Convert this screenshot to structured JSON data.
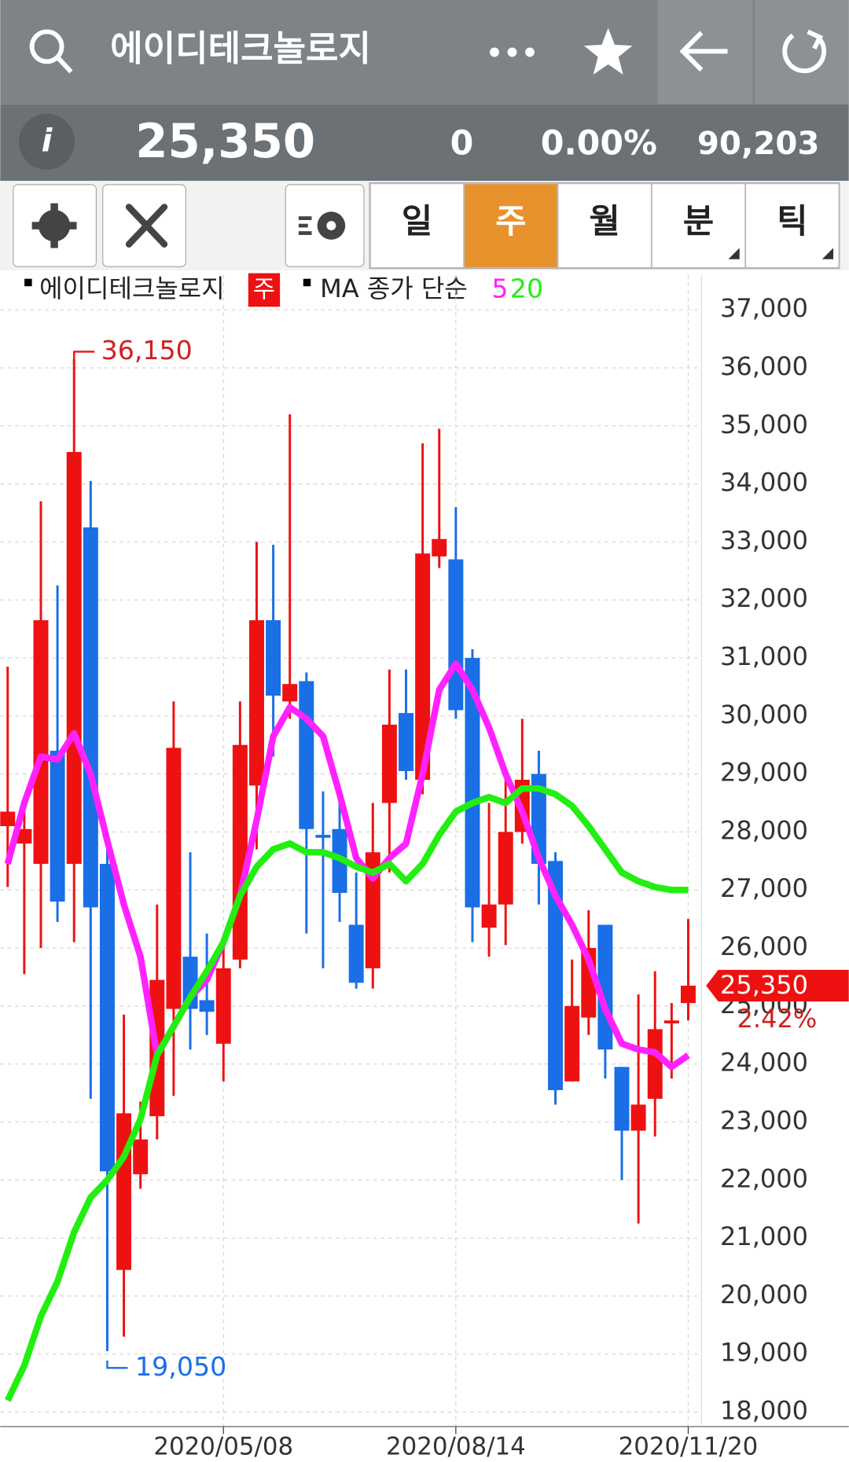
{
  "header": {
    "title": "에이디테크놀로지",
    "price": "25,350",
    "change": "0",
    "change_pct": "0.00%",
    "volume": "90,203"
  },
  "tabs": [
    "일",
    "주",
    "월",
    "분",
    "틱"
  ],
  "chart_data": {
    "type": "candlestick",
    "title": "에이디테크놀로지",
    "period": "주",
    "ma_label": "MA 종가 단순",
    "categories": [
      null,
      null,
      null,
      null,
      null,
      null,
      null,
      null,
      null,
      null,
      null,
      null,
      null,
      "2020/05/08",
      null,
      null,
      null,
      null,
      null,
      null,
      null,
      null,
      null,
      null,
      null,
      null,
      null,
      "2020/08/14",
      null,
      null,
      null,
      null,
      null,
      null,
      null,
      null,
      null,
      null,
      null,
      null,
      null,
      "2020/11/20"
    ],
    "open": [
      28100,
      27800,
      27450,
      29400,
      27450,
      33250,
      27450,
      20450,
      22100,
      23100,
      24950,
      25850,
      25100,
      24350,
      25800,
      28800,
      31650,
      30250,
      30600,
      27950,
      28050,
      26400,
      25650,
      28500,
      30050,
      28900,
      32750,
      32700,
      31000,
      26350,
      26750,
      28000,
      29000,
      27500,
      23700,
      24800,
      26400,
      23950,
      22850,
      23400,
      24700,
      25050
    ],
    "high": [
      30850,
      28500,
      33700,
      32250,
      36150,
      34050,
      27850,
      24850,
      23350,
      26750,
      30250,
      27650,
      26250,
      26100,
      30250,
      33000,
      32950,
      35200,
      30750,
      28700,
      28500,
      27300,
      28500,
      30800,
      30800,
      34700,
      34950,
      33600,
      31150,
      28500,
      29000,
      29950,
      29400,
      27650,
      25800,
      26650,
      26400,
      23950,
      25200,
      25600,
      25050,
      26500
    ],
    "low": [
      27050,
      25550,
      26000,
      26450,
      26100,
      23400,
      19050,
      19300,
      21850,
      22700,
      23450,
      24250,
      24500,
      23700,
      25650,
      27700,
      29300,
      29950,
      26250,
      25650,
      26450,
      25300,
      25300,
      27300,
      28900,
      28650,
      32550,
      29950,
      26100,
      25850,
      26050,
      27800,
      26750,
      23300,
      23700,
      24500,
      23750,
      22000,
      21250,
      22750,
      23750,
      24750
    ],
    "close": [
      28350,
      28050,
      31650,
      26800,
      34550,
      26700,
      22150,
      23150,
      22700,
      25450,
      29450,
      24950,
      24900,
      25650,
      29500,
      31650,
      30350,
      30550,
      28050,
      27900,
      26950,
      25400,
      27650,
      29850,
      29050,
      32800,
      33050,
      30100,
      26700,
      26750,
      28000,
      28900,
      27450,
      23550,
      25000,
      26000,
      24250,
      22850,
      23300,
      24600,
      24750,
      25350
    ],
    "up_color": "#ee1111",
    "down_color": "#1a6ee6",
    "series": [
      {
        "name": "5",
        "color": "#ff22ff",
        "values": [
          27450,
          28500,
          29300,
          29250,
          29700,
          29000,
          27850,
          26750,
          25850,
          24150,
          24650,
          25150,
          25450,
          26100,
          26900,
          28200,
          29650,
          30150,
          29950,
          29650,
          28650,
          27550,
          27200,
          27550,
          27800,
          29000,
          30450,
          30900,
          30450,
          29800,
          29000,
          28350,
          27550,
          26900,
          26400,
          25800,
          24950,
          24350,
          24250,
          24200,
          23950,
          24150
        ]
      },
      {
        "name": "20",
        "color": "#22ee11",
        "values": [
          18200,
          18800,
          19650,
          20250,
          21100,
          21700,
          22000,
          22400,
          23050,
          24150,
          24650,
          25150,
          25600,
          26100,
          26900,
          27400,
          27700,
          27800,
          27650,
          27650,
          27550,
          27400,
          27300,
          27450,
          27150,
          27450,
          27950,
          28350,
          28500,
          28600,
          28500,
          28750,
          28750,
          28650,
          28450,
          28100,
          27700,
          27300,
          27150,
          27050,
          27000,
          27000
        ]
      }
    ],
    "ylim": [
      17750,
      37600
    ],
    "yticks": [
      {
        "value": 18000,
        "label": "18,000"
      },
      {
        "value": 19000,
        "label": "19,000"
      },
      {
        "value": 20000,
        "label": "20,000"
      },
      {
        "value": 21000,
        "label": "21,000"
      },
      {
        "value": 22000,
        "label": "22,000"
      },
      {
        "value": 23000,
        "label": "23,000"
      },
      {
        "value": 24000,
        "label": "24,000"
      },
      {
        "value": 25000,
        "label": "25,000"
      },
      {
        "value": 26000,
        "label": "26,000"
      },
      {
        "value": 27000,
        "label": "27,000"
      },
      {
        "value": 28000,
        "label": "28,000"
      },
      {
        "value": 29000,
        "label": "29,000"
      },
      {
        "value": 30000,
        "label": "30,000"
      },
      {
        "value": 31000,
        "label": "31,000"
      },
      {
        "value": 32000,
        "label": "32,000"
      },
      {
        "value": 33000,
        "label": "33,000"
      },
      {
        "value": 34000,
        "label": "34,000"
      },
      {
        "value": 35000,
        "label": "35,000"
      },
      {
        "value": 36000,
        "label": "36,000"
      },
      {
        "value": 37000,
        "label": "37,000"
      }
    ],
    "grid": true,
    "max_label": "36,150",
    "min_label": "19,050",
    "last_label": "25,350",
    "last_change": "2.42%"
  }
}
